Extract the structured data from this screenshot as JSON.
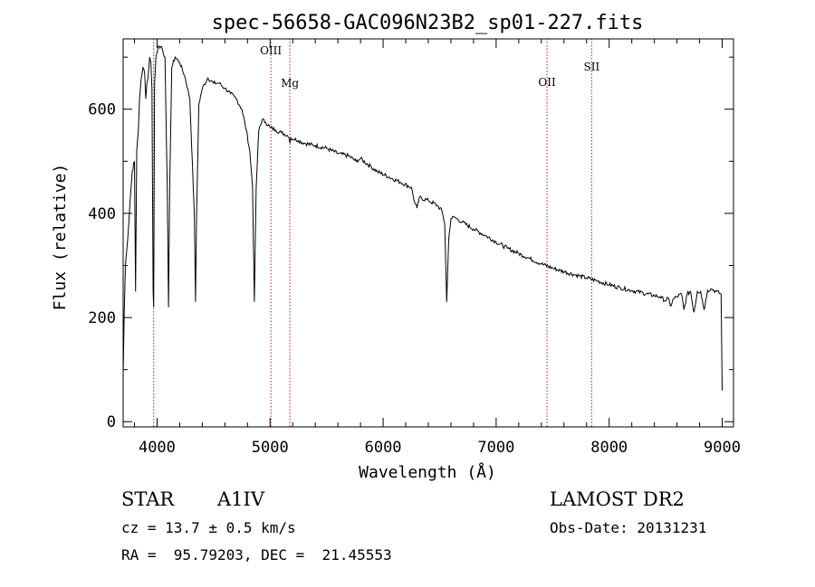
{
  "chart_data": {
    "type": "line",
    "title": "spec-56658-GAC096N23B2_sp01-227.fits",
    "xlabel": "Wavelength (Å)",
    "ylabel": "Flux (relative)",
    "xlim": [
      3700,
      9100
    ],
    "ylim": [
      -10,
      735
    ],
    "xticks": [
      4000,
      5000,
      6000,
      7000,
      8000,
      9000
    ],
    "yticks": [
      0,
      200,
      400,
      600
    ],
    "xtick_labels": [
      "4000",
      "5000",
      "6000",
      "7000",
      "8000",
      "9000"
    ],
    "ytick_labels": [
      "0",
      "200",
      "400",
      "600"
    ],
    "line_color": "#000000",
    "marker_color": "#b22222",
    "lines": [
      {
        "label": "",
        "x": 3970
      },
      {
        "label": "OIII",
        "x": 5007
      },
      {
        "label": "Mg",
        "x": 5175
      },
      {
        "label": "OII",
        "x": 7450
      },
      {
        "label": "SII",
        "x": 7845
      }
    ],
    "series": [
      {
        "x": [
          3700,
          3710,
          3720,
          3740,
          3760,
          3780,
          3800,
          3810,
          3820,
          3835,
          3845,
          3860,
          3875,
          3890,
          3900,
          3910,
          3920,
          3935,
          3945,
          3955,
          3965,
          3970,
          3978,
          3990,
          4010,
          4040,
          4070,
          4090,
          4101,
          4112,
          4130,
          4160,
          4200,
          4250,
          4290,
          4330,
          4340,
          4350,
          4370,
          4400,
          4450,
          4500,
          4550,
          4600,
          4650,
          4700,
          4750,
          4790,
          4820,
          4845,
          4861,
          4877,
          4900,
          4930,
          4960,
          5000,
          5050,
          5100,
          5150,
          5167,
          5175,
          5183,
          5250,
          5300,
          5400,
          5500,
          5600,
          5700,
          5760,
          5800,
          5890,
          5950,
          6050,
          6150,
          6250,
          6280,
          6300,
          6320,
          6400,
          6480,
          6520,
          6545,
          6563,
          6580,
          6600,
          6630,
          6650,
          6700,
          6800,
          6900,
          7000,
          7100,
          7200,
          7300,
          7400,
          7500,
          7600,
          7700,
          7800,
          7900,
          8000,
          8100,
          8200,
          8300,
          8400,
          8450,
          8498,
          8520,
          8542,
          8570,
          8600,
          8640,
          8662,
          8690,
          8720,
          8750,
          8780,
          8810,
          8840,
          8870,
          8900,
          8950,
          8990,
          9000
        ],
        "y": [
          90,
          210,
          300,
          350,
          420,
          480,
          500,
          250,
          520,
          560,
          620,
          660,
          680,
          670,
          620,
          650,
          660,
          700,
          690,
          640,
          250,
          220,
          650,
          700,
          720,
          720,
          700,
          450,
          220,
          450,
          680,
          700,
          690,
          660,
          620,
          400,
          230,
          400,
          610,
          640,
          660,
          650,
          650,
          640,
          630,
          620,
          600,
          560,
          520,
          450,
          230,
          450,
          560,
          580,
          575,
          565,
          560,
          555,
          550,
          545,
          535,
          545,
          540,
          535,
          530,
          525,
          515,
          510,
          500,
          505,
          490,
          480,
          470,
          460,
          450,
          420,
          410,
          430,
          425,
          415,
          405,
          380,
          230,
          350,
          390,
          393,
          390,
          383,
          370,
          358,
          345,
          333,
          323,
          313,
          303,
          295,
          288,
          282,
          276,
          270,
          263,
          257,
          252,
          247,
          242,
          240,
          232,
          238,
          222,
          236,
          240,
          245,
          215,
          245,
          250,
          210,
          250,
          250,
          215,
          252,
          255,
          250,
          245,
          60
        ]
      }
    ]
  },
  "object_class": "STAR",
  "subclass": "A1IV",
  "survey": "LAMOST DR2",
  "redshift_text": "cz = 13.7 ± 0.5 km/s",
  "obs_date_text": "Obs-Date: 20131231",
  "coords_text": "RA =  95.79203, DEC =  21.45553"
}
